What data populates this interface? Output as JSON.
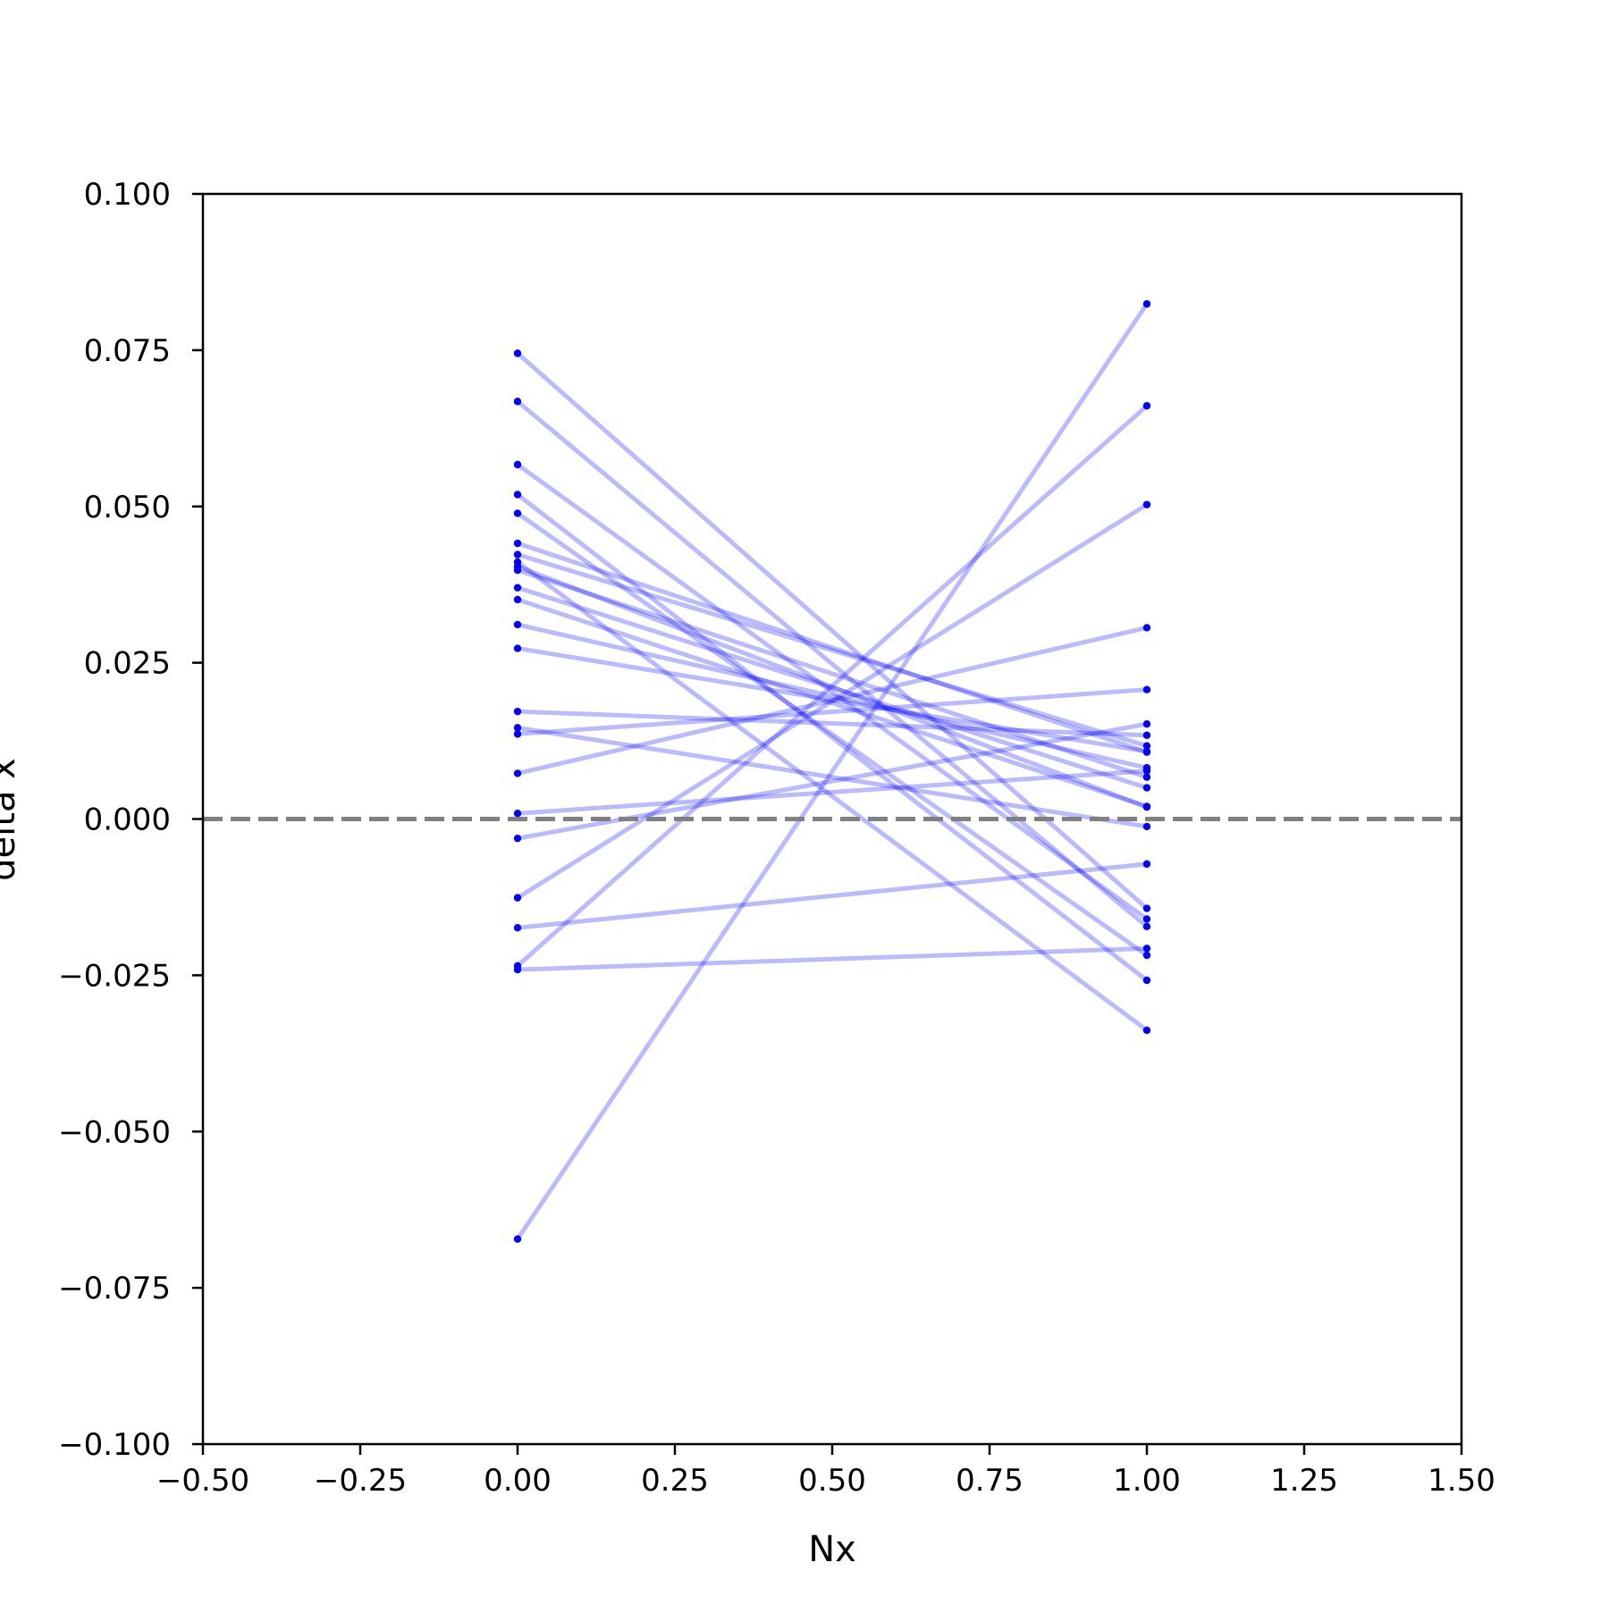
{
  "chart_data": {
    "type": "line",
    "title": "",
    "xlabel": "Nx",
    "ylabel": "delta x",
    "xlim": [
      -0.5,
      1.5
    ],
    "ylim": [
      -0.1,
      0.1
    ],
    "x_ticks": [
      -0.5,
      -0.25,
      0.0,
      0.25,
      0.5,
      0.75,
      1.0,
      1.25,
      1.5
    ],
    "x_tick_labels": [
      "−0.50",
      "−0.25",
      "0.00",
      "0.25",
      "0.50",
      "0.75",
      "1.00",
      "1.25",
      "1.50"
    ],
    "y_ticks": [
      0.1,
      0.075,
      0.05,
      0.025,
      0.0,
      -0.025,
      -0.05,
      -0.075,
      -0.1
    ],
    "y_tick_labels": [
      "0.100",
      "0.075",
      "0.050",
      "0.025",
      "0.000",
      "−0.025",
      "−0.050",
      "−0.075",
      "−0.100"
    ],
    "grid": false,
    "legend": "none",
    "line_color": "#0000ff",
    "line_alpha": 0.27,
    "reference_line": {
      "y": 0.0,
      "style": "dashed",
      "color": "#808080"
    },
    "x": [
      0,
      1
    ],
    "series": [
      {
        "values": [
          -0.0672,
          0.0824
        ]
      },
      {
        "values": [
          -0.0235,
          0.0661
        ]
      },
      {
        "values": [
          -0.0126,
          0.0503
        ]
      },
      {
        "values": [
          0.0073,
          0.0306
        ]
      },
      {
        "values": [
          0.0009,
          0.0077
        ]
      },
      {
        "values": [
          -0.0031,
          0.0152
        ]
      },
      {
        "values": [
          -0.0174,
          -0.0072
        ]
      },
      {
        "values": [
          -0.0241,
          -0.0207
        ]
      },
      {
        "values": [
          0.0136,
          0.0207
        ]
      },
      {
        "values": [
          0.0745,
          -0.0143
        ]
      },
      {
        "values": [
          0.0668,
          -0.0172
        ]
      },
      {
        "values": [
          0.0567,
          -0.016
        ]
      },
      {
        "values": [
          0.0519,
          -0.0258
        ]
      },
      {
        "values": [
          0.0489,
          -0.0218
        ]
      },
      {
        "values": [
          0.0441,
          0.0107
        ]
      },
      {
        "values": [
          0.0423,
          0.0117
        ]
      },
      {
        "values": [
          0.0404,
          0.0019
        ]
      },
      {
        "values": [
          0.0398,
          0.0067
        ]
      },
      {
        "values": [
          0.037,
          0.005
        ]
      },
      {
        "values": [
          0.0351,
          0.002
        ]
      },
      {
        "values": [
          0.0311,
          0.0082
        ]
      },
      {
        "values": [
          0.0273,
          0.0108
        ]
      },
      {
        "values": [
          0.0172,
          0.0134
        ]
      },
      {
        "values": [
          0.0146,
          -0.0012
        ]
      },
      {
        "values": [
          0.0411,
          -0.0338
        ]
      }
    ]
  }
}
